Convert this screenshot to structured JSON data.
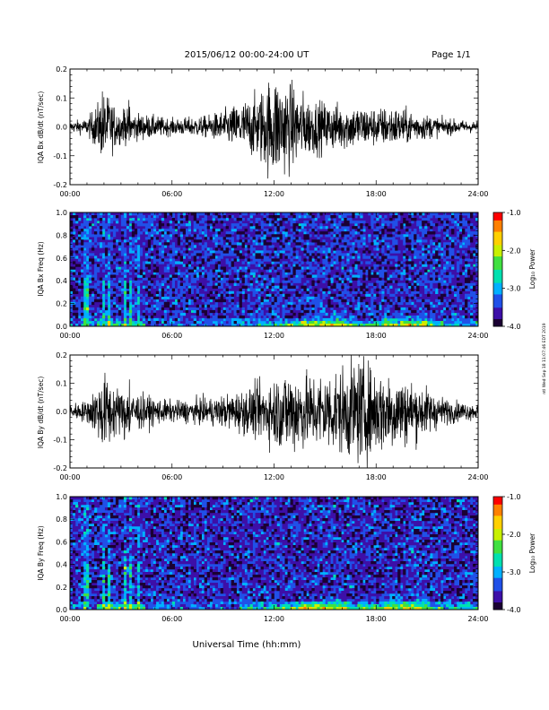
{
  "header": {
    "date_range": "2015/06/12  00:00-24:00 UT",
    "page": "Page 1/1"
  },
  "xaxis": {
    "label": "Universal Time (hh:mm)",
    "ticks": [
      "00:00",
      "06:00",
      "12:00",
      "18:00",
      "24:00"
    ]
  },
  "stamp": "ntl Wed Sep 18 11:07:46 EDT 2019",
  "colors": {
    "trace": "#000000",
    "colormap": [
      "#1a0033",
      "#3d0fa8",
      "#2050e8",
      "#00b0ff",
      "#00e0b0",
      "#40e040",
      "#c8f000",
      "#ffd000",
      "#ff8000",
      "#ff0000"
    ]
  },
  "chart_data": [
    {
      "type": "line",
      "panel": "bx-waveform",
      "ylabel": "IQA Bx dB/dt (nT/sec)",
      "ylim": [
        -0.2,
        0.2
      ],
      "yticks": [
        "0.2",
        "0.1",
        "0.0",
        "-0.1",
        "-0.2"
      ],
      "x_hours": [
        0,
        1,
        2,
        3,
        4,
        5,
        6,
        7,
        8,
        9,
        10,
        11,
        12,
        13,
        14,
        15,
        16,
        17,
        18,
        19,
        20,
        21,
        22,
        23,
        24
      ],
      "envelope_amplitude": [
        0.02,
        0.03,
        0.12,
        0.06,
        0.05,
        0.04,
        0.03,
        0.035,
        0.04,
        0.06,
        0.09,
        0.12,
        0.2,
        0.16,
        0.11,
        0.09,
        0.085,
        0.08,
        0.07,
        0.075,
        0.06,
        0.045,
        0.03,
        0.025,
        0.02
      ]
    },
    {
      "type": "heatmap",
      "panel": "bx-spectrogram",
      "ylabel": "IQA Bx Freq (Hz)",
      "ylim": [
        0.0,
        1.0
      ],
      "yticks": [
        "1.0",
        "0.8",
        "0.6",
        "0.4",
        "0.2",
        "0.0"
      ],
      "colorbar": {
        "label": "Log₁₀ Power",
        "range": [
          -4.0,
          -1.0
        ],
        "ticks": [
          "-1.0",
          "-2.0",
          "-3.0",
          "-4.0"
        ]
      }
    },
    {
      "type": "line",
      "panel": "by-waveform",
      "ylabel": "IQA By dB/dt (nT/sec)",
      "ylim": [
        -0.2,
        0.2
      ],
      "yticks": [
        "0.2",
        "0.1",
        "0.0",
        "-0.1",
        "-0.2"
      ],
      "x_hours": [
        0,
        1,
        2,
        3,
        4,
        5,
        6,
        7,
        8,
        9,
        10,
        11,
        12,
        13,
        14,
        15,
        16,
        17,
        18,
        19,
        20,
        21,
        22,
        23,
        24
      ],
      "envelope_amplitude": [
        0.03,
        0.04,
        0.14,
        0.08,
        0.07,
        0.05,
        0.04,
        0.045,
        0.05,
        0.06,
        0.08,
        0.1,
        0.13,
        0.17,
        0.14,
        0.15,
        0.16,
        0.2,
        0.16,
        0.15,
        0.12,
        0.09,
        0.05,
        0.035,
        0.03
      ]
    },
    {
      "type": "heatmap",
      "panel": "by-spectrogram",
      "ylabel": "IQA By Freq (Hz)",
      "ylim": [
        0.0,
        1.0
      ],
      "yticks": [
        "1.0",
        "0.8",
        "0.6",
        "0.4",
        "0.2",
        "0.0"
      ],
      "colorbar": {
        "label": "Log₁₀ Power",
        "range": [
          -4.0,
          -1.0
        ],
        "ticks": [
          "-1.0",
          "-2.0",
          "-3.0",
          "-4.0"
        ]
      }
    }
  ]
}
